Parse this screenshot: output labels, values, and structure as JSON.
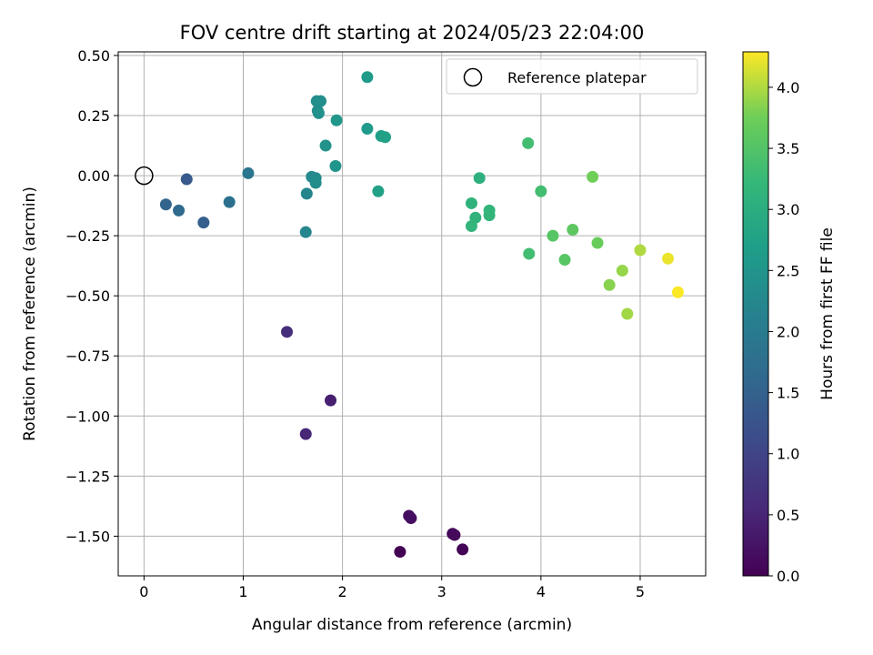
{
  "chart_data": {
    "type": "scatter",
    "title": "FOV centre drift starting at 2024/05/23 22:04:00",
    "xlabel": "Angular distance from reference (arcmin)",
    "ylabel": "Rotation from reference (arcmin)",
    "xlim": [
      -0.26,
      5.66
    ],
    "ylim": [
      -1.665,
      0.515
    ],
    "xticks": [
      0,
      1,
      2,
      3,
      4,
      5
    ],
    "xtick_labels": [
      "0",
      "1",
      "2",
      "3",
      "4",
      "5"
    ],
    "yticks": [
      0.5,
      0.25,
      0.0,
      -0.25,
      -0.5,
      -0.75,
      -1.0,
      -1.25,
      -1.5
    ],
    "ytick_labels": [
      "0.50",
      "0.25",
      "0.00",
      "−0.25",
      "−0.50",
      "−0.75",
      "−1.00",
      "−1.25",
      "−1.50"
    ],
    "grid": true,
    "legend": {
      "position": "top-right",
      "entries": [
        "Reference platepar"
      ]
    },
    "reference_point": {
      "x": 0.0,
      "y": 0.0
    },
    "colorbar": {
      "label": "Hours from first FF file",
      "colormap": "viridis",
      "range": [
        0.0,
        4.29
      ],
      "ticks": [
        0.0,
        0.5,
        1.0,
        1.5,
        2.0,
        2.5,
        3.0,
        3.5,
        4.0
      ],
      "tick_labels": [
        "0.0",
        "0.5",
        "1.0",
        "1.5",
        "2.0",
        "2.5",
        "3.0",
        "3.5",
        "4.0"
      ]
    },
    "points": [
      {
        "x": 2.58,
        "y": -1.565,
        "c": 0.02
      },
      {
        "x": 3.21,
        "y": -1.555,
        "c": 0.05
      },
      {
        "x": 3.11,
        "y": -1.49,
        "c": 0.09
      },
      {
        "x": 3.13,
        "y": -1.495,
        "c": 0.12
      },
      {
        "x": 2.67,
        "y": -1.415,
        "c": 0.16
      },
      {
        "x": 2.69,
        "y": -1.425,
        "c": 0.19
      },
      {
        "x": 1.88,
        "y": -0.935,
        "c": 0.41
      },
      {
        "x": 1.63,
        "y": -1.075,
        "c": 0.52
      },
      {
        "x": 1.44,
        "y": -0.65,
        "c": 0.62
      },
      {
        "x": 0.43,
        "y": -0.015,
        "c": 1.35
      },
      {
        "x": 0.6,
        "y": -0.195,
        "c": 1.45
      },
      {
        "x": 0.22,
        "y": -0.12,
        "c": 1.55
      },
      {
        "x": 0.35,
        "y": -0.145,
        "c": 1.65
      },
      {
        "x": 0.86,
        "y": -0.11,
        "c": 1.78
      },
      {
        "x": 1.05,
        "y": 0.01,
        "c": 1.9
      },
      {
        "x": 1.63,
        "y": -0.235,
        "c": 2.25
      },
      {
        "x": 1.64,
        "y": -0.075,
        "c": 2.2
      },
      {
        "x": 1.69,
        "y": -0.005,
        "c": 2.3
      },
      {
        "x": 1.73,
        "y": -0.01,
        "c": 2.3
      },
      {
        "x": 1.73,
        "y": -0.03,
        "c": 2.35
      },
      {
        "x": 1.74,
        "y": 0.31,
        "c": 2.35
      },
      {
        "x": 1.78,
        "y": 0.31,
        "c": 2.4
      },
      {
        "x": 1.75,
        "y": 0.27,
        "c": 2.4
      },
      {
        "x": 1.76,
        "y": 0.26,
        "c": 2.42
      },
      {
        "x": 1.83,
        "y": 0.125,
        "c": 2.45
      },
      {
        "x": 1.94,
        "y": 0.23,
        "c": 2.55
      },
      {
        "x": 1.93,
        "y": 0.04,
        "c": 2.5
      },
      {
        "x": 2.25,
        "y": 0.41,
        "c": 2.62
      },
      {
        "x": 2.25,
        "y": 0.195,
        "c": 2.6
      },
      {
        "x": 2.39,
        "y": 0.165,
        "c": 2.7
      },
      {
        "x": 2.43,
        "y": 0.16,
        "c": 2.75
      },
      {
        "x": 2.36,
        "y": -0.065,
        "c": 2.75
      },
      {
        "x": 3.3,
        "y": -0.115,
        "c": 3.1
      },
      {
        "x": 3.38,
        "y": -0.01,
        "c": 3.05
      },
      {
        "x": 3.34,
        "y": -0.175,
        "c": 3.12
      },
      {
        "x": 3.3,
        "y": -0.21,
        "c": 3.15
      },
      {
        "x": 3.48,
        "y": -0.145,
        "c": 3.15
      },
      {
        "x": 3.48,
        "y": -0.165,
        "c": 3.18
      },
      {
        "x": 3.87,
        "y": 0.135,
        "c": 3.35
      },
      {
        "x": 3.88,
        "y": -0.325,
        "c": 3.35
      },
      {
        "x": 4.0,
        "y": -0.065,
        "c": 3.35
      },
      {
        "x": 4.12,
        "y": -0.25,
        "c": 3.55
      },
      {
        "x": 4.24,
        "y": -0.35,
        "c": 3.55
      },
      {
        "x": 4.32,
        "y": -0.225,
        "c": 3.6
      },
      {
        "x": 4.52,
        "y": -0.005,
        "c": 3.75
      },
      {
        "x": 4.57,
        "y": -0.28,
        "c": 3.7
      },
      {
        "x": 4.69,
        "y": -0.455,
        "c": 3.85
      },
      {
        "x": 4.82,
        "y": -0.395,
        "c": 3.9
      },
      {
        "x": 4.87,
        "y": -0.575,
        "c": 3.95
      },
      {
        "x": 5.0,
        "y": -0.31,
        "c": 4.0
      },
      {
        "x": 5.28,
        "y": -0.345,
        "c": 4.22
      },
      {
        "x": 5.38,
        "y": -0.485,
        "c": 4.28
      }
    ]
  }
}
